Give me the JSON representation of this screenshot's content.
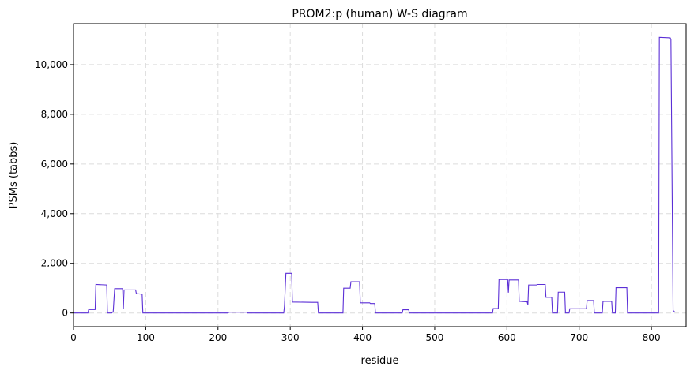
{
  "chart_data": {
    "type": "line",
    "title": "PROM2:p (human) W-S diagram",
    "xlabel": "residue",
    "ylabel": "PSMs (tabbs)",
    "xlim": [
      0,
      848
    ],
    "ylim": [
      -550,
      11650
    ],
    "xticks": [
      0,
      100,
      200,
      300,
      400,
      500,
      600,
      700,
      800
    ],
    "yticks": [
      0,
      2000,
      4000,
      6000,
      8000,
      10000
    ],
    "xtick_labels": [
      "0",
      "100",
      "200",
      "300",
      "400",
      "500",
      "600",
      "700",
      "800"
    ],
    "ytick_labels": [
      "0",
      "2,000",
      "4,000",
      "6,000",
      "8,000",
      "10,000"
    ],
    "grid": true,
    "color": "#5b2fd6",
    "series": [
      {
        "x": [
          1,
          20,
          21,
          30,
          31,
          46,
          47,
          53,
          55,
          57,
          68,
          69,
          70,
          86,
          87,
          95,
          96,
          214,
          215,
          240,
          241,
          291,
          292,
          294,
          302,
          303,
          330,
          338,
          339,
          373,
          374,
          383,
          384,
          396,
          397,
          410,
          411,
          417,
          418,
          455,
          456,
          464,
          465,
          580,
          581,
          588,
          589,
          601,
          602,
          603,
          616,
          617,
          628,
          629,
          630,
          641,
          642,
          653,
          654,
          662,
          663,
          670,
          671,
          680,
          681,
          686,
          687,
          710,
          711,
          720,
          721,
          732,
          733,
          745,
          746,
          750,
          751,
          766,
          767,
          810,
          811,
          826,
          827,
          830,
          832
        ],
        "y": [
          0,
          0,
          140,
          140,
          1150,
          1130,
          0,
          0,
          60,
          980,
          980,
          150,
          930,
          930,
          780,
          760,
          0,
          0,
          30,
          30,
          0,
          0,
          280,
          1600,
          1600,
          440,
          430,
          430,
          0,
          0,
          1000,
          1000,
          1260,
          1260,
          410,
          410,
          380,
          380,
          0,
          0,
          130,
          130,
          0,
          0,
          180,
          180,
          1350,
          1350,
          820,
          1330,
          1330,
          470,
          450,
          330,
          1130,
          1130,
          1150,
          1150,
          630,
          630,
          0,
          0,
          840,
          840,
          0,
          0,
          170,
          170,
          500,
          500,
          0,
          0,
          470,
          470,
          0,
          0,
          1020,
          1020,
          0,
          0,
          11100,
          11080,
          11020,
          100,
          60
        ]
      }
    ]
  }
}
